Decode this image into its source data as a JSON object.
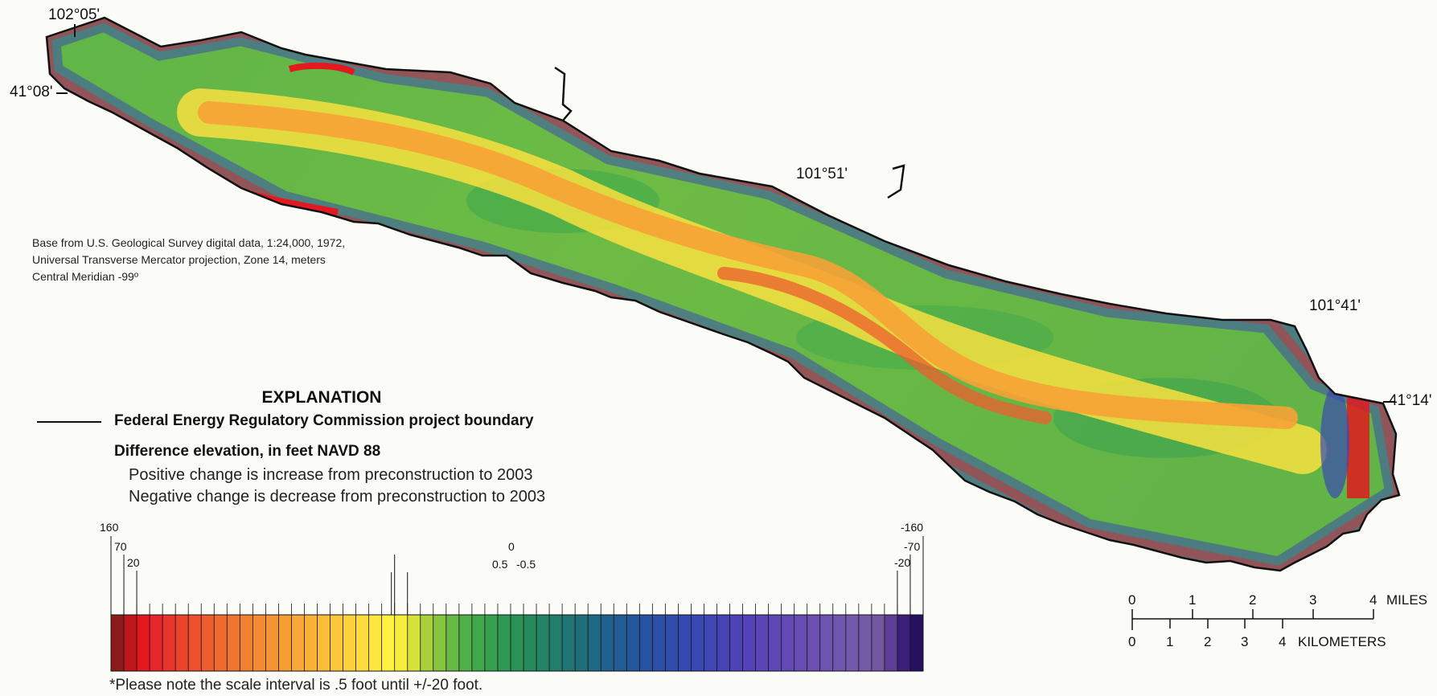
{
  "map": {
    "coords": {
      "top_left_lon": "102°05'",
      "top_left_lat": "41°08'",
      "mid_lon": "101°51'",
      "right_lon": "101°41'",
      "right_lat": "41°14'"
    },
    "base_note": [
      "Base from U.S. Geological Survey digital data, 1:24,000, 1972,",
      "Universal Transverse Mercator projection, Zone 14, meters",
      "Central Meridian -99º"
    ]
  },
  "explanation": {
    "title": "EXPLANATION",
    "boundary_label": "Federal Energy Regulatory Commission project boundary",
    "difference_title": "Difference elevation, in feet NAVD 88",
    "positive_note": "Positive change is increase from preconstruction to 2003",
    "negative_note": "Negative change is decrease from preconstruction to 2003",
    "scale_labels": {
      "p160": "160",
      "p70": "70",
      "p20": "20",
      "zero": "0",
      "p05": "0.5",
      "n05": "-0.5",
      "n20": "-20",
      "n70": "-70",
      "n160": "-160"
    },
    "footnote": "*Please note the scale interval is .5 foot until +/-20 foot.",
    "colors": [
      "#8b1a1a",
      "#c0171d",
      "#e3191f",
      "#e7262a",
      "#e8352b",
      "#ea432c",
      "#ec502d",
      "#ee5d2e",
      "#ef6a2f",
      "#f07530",
      "#f28031",
      "#f48a32",
      "#f59433",
      "#f69e34",
      "#f8a836",
      "#f9b237",
      "#fabc39",
      "#fcc63b",
      "#fdd03d",
      "#fedb3f",
      "#ffe640",
      "#fff142",
      "#f6ee3d",
      "#d6e23a",
      "#a9cf3a",
      "#86c440",
      "#66b945",
      "#4fb048",
      "#3fa84b",
      "#36a04f",
      "#2f9853",
      "#2a9157",
      "#268a5d",
      "#238464",
      "#227d6c",
      "#217673",
      "#1f6f7b",
      "#1f6984",
      "#20628d",
      "#225c95",
      "#25579c",
      "#2853a2",
      "#2c50a7",
      "#304dab",
      "#354aae",
      "#3a48b1",
      "#4046b3",
      "#4644b5",
      "#4c43b6",
      "#5442b7",
      "#5a44b6",
      "#5f47b5",
      "#6349b4",
      "#674db3",
      "#6b50b2",
      "#6d54b0",
      "#6f57ae",
      "#7259ab",
      "#745ba8",
      "#7159a2",
      "#5c3f95",
      "#3c1f7a",
      "#271060"
    ]
  },
  "scale_bar": {
    "miles": [
      "0",
      "1",
      "2",
      "3",
      "4"
    ],
    "miles_unit": "MILES",
    "km": [
      "0",
      "1",
      "2",
      "3",
      "4"
    ],
    "km_unit": "KILOMETERS"
  }
}
